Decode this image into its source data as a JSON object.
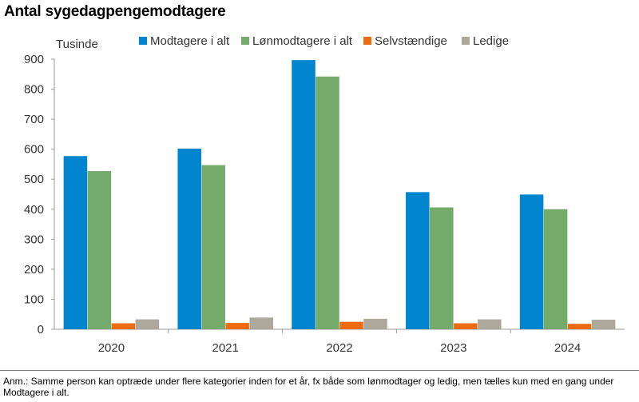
{
  "header": {
    "title": "Antal sygedagpengemodtagere"
  },
  "chart_data": {
    "type": "bar",
    "ylabel": "Tusinde",
    "categories": [
      "2020",
      "2021",
      "2022",
      "2023",
      "2024"
    ],
    "ylim": [
      0,
      900
    ],
    "yticks": [
      0,
      100,
      200,
      300,
      400,
      500,
      600,
      700,
      800,
      900
    ],
    "grid": false,
    "legend": "top",
    "series": [
      {
        "name": "Modtagere i alt",
        "color": "#0085CE",
        "values": [
          577,
          602,
          897,
          457,
          449
        ]
      },
      {
        "name": "Lønmodtagere i alt",
        "color": "#74AB6A",
        "values": [
          527,
          547,
          842,
          406,
          400
        ]
      },
      {
        "name": "Selvstændige",
        "color": "#ED6C11",
        "values": [
          20,
          21,
          25,
          20,
          18
        ]
      },
      {
        "name": "Ledige",
        "color": "#ACA89C",
        "values": [
          33,
          39,
          35,
          33,
          32
        ]
      }
    ]
  },
  "footer": {
    "note": "Anm.: Samme person kan optræde under flere kategorier inden for et år, fx både som lønmodtager og ledig, men tælles kun med en gang under Modtagere i alt."
  }
}
